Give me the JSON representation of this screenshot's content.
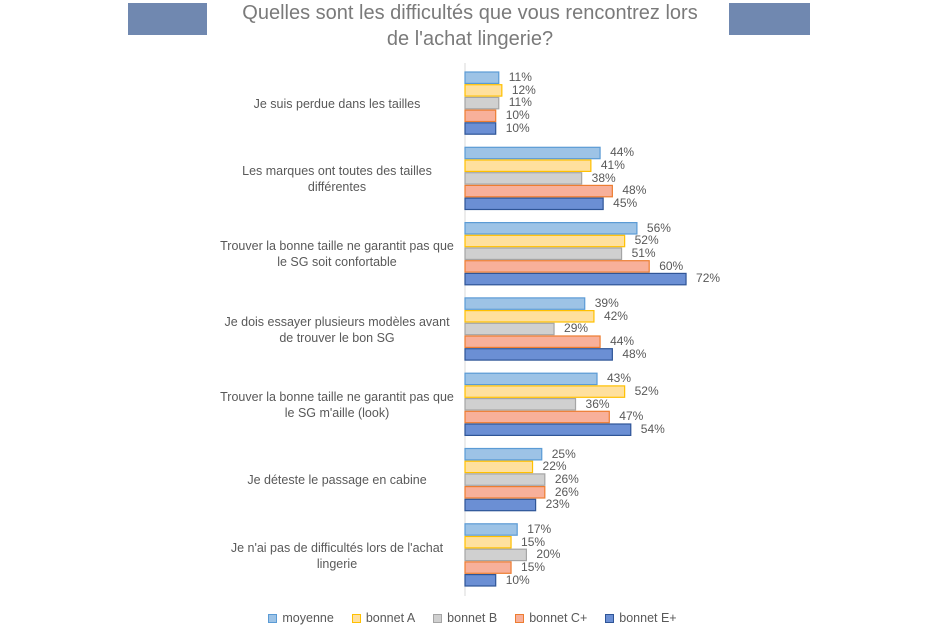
{
  "chart_data": {
    "type": "bar",
    "orientation": "horizontal",
    "title": "Quelles sont les difficultés que vous rencontrez lors de l'achat lingerie?",
    "categories": [
      "Je suis perdue dans les tailles",
      "Les marques ont toutes des tailles différentes",
      "Trouver la bonne taille ne garantit pas que le SG soit confortable",
      "Je dois essayer plusieurs modèles avant de trouver le bon SG",
      "Trouver la bonne taille ne garantit pas que le SG m'aille (look)",
      "Je déteste le passage en cabine",
      "Je n'ai pas de difficultés lors de l'achat lingerie"
    ],
    "series": [
      {
        "name": "moyenne",
        "color": "#9dc3e6",
        "border": "#5b9bd5",
        "values": [
          11,
          44,
          56,
          39,
          43,
          25,
          17
        ]
      },
      {
        "name": "bonnet A",
        "color": "#ffe09e",
        "border": "#ffc000",
        "values": [
          12,
          41,
          52,
          42,
          52,
          22,
          15
        ]
      },
      {
        "name": "bonnet B",
        "color": "#d0d0d0",
        "border": "#a5a5a5",
        "values": [
          11,
          38,
          51,
          29,
          36,
          26,
          20
        ]
      },
      {
        "name": "bonnet C+",
        "color": "#f8b09a",
        "border": "#ed7d31",
        "values": [
          10,
          48,
          60,
          44,
          47,
          26,
          15
        ]
      },
      {
        "name": "bonnet E+",
        "color": "#6b8fd4",
        "border": "#2f5597",
        "values": [
          10,
          45,
          72,
          48,
          54,
          23,
          10
        ]
      }
    ],
    "value_suffix": "%",
    "xlim": [
      0,
      80
    ],
    "legend_position": "bottom"
  }
}
